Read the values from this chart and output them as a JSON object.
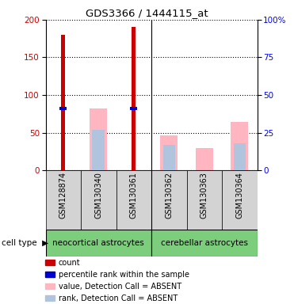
{
  "title": "GDS3366 / 1444115_at",
  "samples": [
    "GSM128874",
    "GSM130340",
    "GSM130361",
    "GSM130362",
    "GSM130363",
    "GSM130364"
  ],
  "count_values": [
    180,
    0,
    191,
    0,
    0,
    0
  ],
  "percentile_values": [
    82,
    0,
    82,
    0,
    0,
    0
  ],
  "value_absent": [
    0,
    82,
    0,
    46,
    30,
    64
  ],
  "rank_absent": [
    0,
    54,
    0,
    34,
    0,
    36
  ],
  "groups": [
    {
      "label": "neocortical astrocytes",
      "start": 0,
      "end": 3,
      "color": "#7CCD7C"
    },
    {
      "label": "cerebellar astrocytes",
      "start": 3,
      "end": 6,
      "color": "#7CCD7C"
    }
  ],
  "ylim_left": [
    0,
    200
  ],
  "ylim_right": [
    0,
    100
  ],
  "yticks_left": [
    0,
    50,
    100,
    150,
    200
  ],
  "yticks_right": [
    0,
    25,
    50,
    75,
    100
  ],
  "ytick_labels_right": [
    "0",
    "25",
    "50",
    "75",
    "100%"
  ],
  "color_count": "#cc0000",
  "color_percentile": "#0000cc",
  "color_value_absent": "#ffb6c1",
  "color_rank_absent": "#b0c4de",
  "bg_plot": "#ffffff",
  "bg_sample": "#d3d3d3",
  "cell_type_label": "cell type"
}
